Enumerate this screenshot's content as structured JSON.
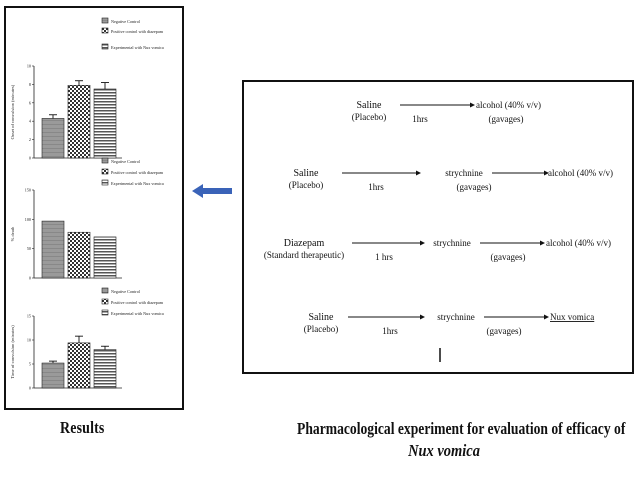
{
  "results": {
    "caption": "Results"
  },
  "main_caption": {
    "line1": "Pharmacological experiment for evaluation of efficacy of",
    "line2": "Nux vomica"
  },
  "chart_data": [
    {
      "type": "bar",
      "categories": [
        "Negative Control",
        "Positive control with diazepam",
        "Experimental with Nux vomica"
      ],
      "values": [
        4.3,
        7.9,
        7.5
      ],
      "errors": [
        0.4,
        0.5,
        0.7
      ],
      "ylabel": "Onset of convulsion (minutes)",
      "ylim": [
        0,
        10
      ],
      "yticks": [
        "0",
        "2",
        "4",
        "6",
        "8",
        "10"
      ],
      "legend": [
        "Negative Control",
        "Positive control with diazepam",
        "Experimental with Nux vomica"
      ]
    },
    {
      "type": "bar",
      "categories": [
        "Negative Control",
        "Positive control with diazepam",
        "Experimental with Nux vomica"
      ],
      "values": [
        97,
        78,
        70
      ],
      "errors": [
        0,
        0,
        0
      ],
      "ylabel": "% death",
      "ylim": [
        0,
        150
      ],
      "yticks": [
        "0",
        "50",
        "100",
        "150"
      ],
      "legend": [
        "Negative Control",
        "Positive control with diazepam",
        "Experimental with Nux vomica"
      ]
    },
    {
      "type": "bar",
      "categories": [
        "Negative Control",
        "Positive control with diazepam",
        "Experimental with Nux vomica"
      ],
      "values": [
        5.2,
        9.4,
        8.0
      ],
      "errors": [
        0.4,
        1.4,
        0.7
      ],
      "ylabel": "Time of convulsion (minutes)",
      "ylim": [
        0,
        15
      ],
      "yticks": [
        "0",
        "5",
        "10",
        "15"
      ],
      "legend": [
        "Negative Control",
        "Positive control with diazepam",
        "Experimental with Nux vomica"
      ]
    }
  ],
  "protocol": {
    "rows": [
      {
        "start": [
          "Saline",
          "(Placebo)"
        ],
        "time": "1hrs",
        "middle": "",
        "end": "alcohol (40% v/v)",
        "gavage": "(gavages)"
      },
      {
        "start": [
          "Saline",
          "(Placebo)"
        ],
        "time": "1hrs",
        "middle": "strychnine",
        "end": "alcohol (40% v/v)",
        "gavage": "(gavages)"
      },
      {
        "start": [
          "Diazepam",
          "(Standard therapeutic)"
        ],
        "time": "1 hrs",
        "middle": "strychnine",
        "end": "alcohol (40% v/v)",
        "gavage": "(gavages)"
      },
      {
        "start": [
          "Saline",
          "(Placebo)"
        ],
        "time": "1hrs",
        "middle": "strychnine",
        "end": "Nux vomica",
        "gavage": "(gavages)"
      }
    ]
  }
}
